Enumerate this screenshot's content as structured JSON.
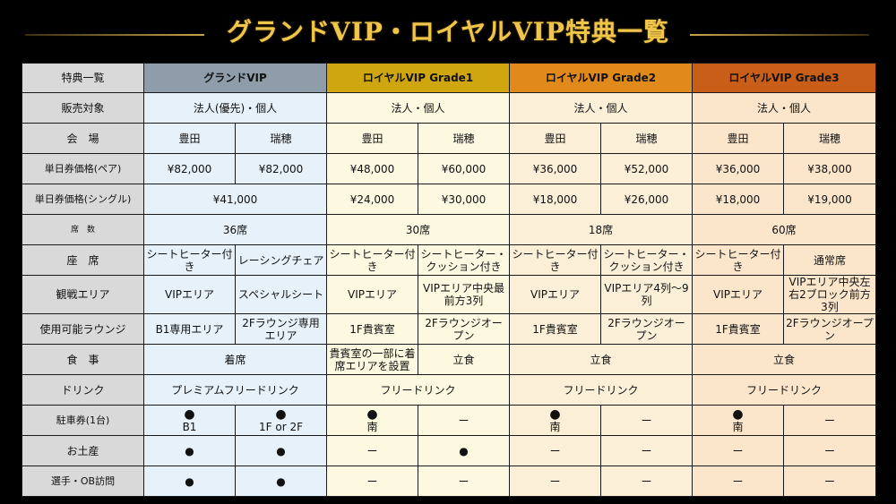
{
  "title": "グランドVIP・ロイヤルVIP特典一覧",
  "header": {
    "label": "特典一覧",
    "grand": "グランドVIP",
    "royal1": "ロイヤルVIP Grade1",
    "royal2": "ロイヤルVIP Grade2",
    "royal3": "ロイヤルVIP Grade3"
  },
  "rows": {
    "target": {
      "label": "販売対象",
      "grand": "法人(優先)・個人",
      "r1": "法人・個人",
      "r2": "法人・個人",
      "r3": "法人・個人"
    },
    "venue": {
      "label": "会　場",
      "g_a": "豊田",
      "g_b": "瑞穂",
      "r1_a": "豊田",
      "r1_b": "瑞穂",
      "r2_a": "豊田",
      "r2_b": "瑞穂",
      "r3_a": "豊田",
      "r3_b": "瑞穂"
    },
    "pair": {
      "label": "単日券価格(ペア)",
      "g_a": "¥82,000",
      "g_b": "¥82,000",
      "r1_a": "¥48,000",
      "r1_b": "¥60,000",
      "r2_a": "¥36,000",
      "r2_b": "¥52,000",
      "r3_a": "¥36,000",
      "r3_b": "¥38,000"
    },
    "single": {
      "label": "単日券価格(シングル)",
      "grand": "¥41,000",
      "r1_a": "¥24,000",
      "r1_b": "¥30,000",
      "r2_a": "¥18,000",
      "r2_b": "¥26,000",
      "r3_a": "¥18,000",
      "r3_b": "¥19,000"
    },
    "seats": {
      "label": "席　数",
      "grand": "36席",
      "r1": "30席",
      "r2": "18席",
      "r3": "60席"
    },
    "seat": {
      "label": "座　席",
      "g_a": "シートヒーター付き",
      "g_b": "レーシングチェア",
      "r1_a": "シートヒーター付き",
      "r1_b": "シートヒーター・クッション付き",
      "r2_a": "シートヒーター付き",
      "r2_b": "シートヒーター・クッション付き",
      "r3_a": "シートヒーター付き",
      "r3_b": "通常席"
    },
    "area": {
      "label": "観戦エリア",
      "g_a": "VIPエリア",
      "g_b": "スペシャルシート",
      "r1_a": "VIPエリア",
      "r1_b": "VIPエリア中央最前方3列",
      "r2_a": "VIPエリア",
      "r2_b": "VIPエリア4列～9列",
      "r3_a": "VIPエリア",
      "r3_b": "VIPエリア中央左右2ブロック前方3列"
    },
    "lounge": {
      "label": "使用可能ラウンジ",
      "g_a": "B1専用エリア",
      "g_b": "2Fラウンジ専用エリア",
      "r1_a": "1F貴賓室",
      "r1_b": "2Fラウンジオープン",
      "r2_a": "1F貴賓室",
      "r2_b": "2Fラウンジオープン",
      "r3_a": "1F貴賓室",
      "r3_b": "2Fラウンジオープン"
    },
    "meal": {
      "label": "食　事",
      "grand": "着席",
      "r1_note": "貴賓室の一部に着席エリアを設置",
      "r1_b": "立食",
      "r2": "立食",
      "r3": "立食"
    },
    "drink": {
      "label": "ドリンク",
      "grand": "プレミアムフリードリンク",
      "r1": "フリードリンク",
      "r2": "フリードリンク",
      "r3": "フリードリンク"
    },
    "parking": {
      "label": "駐車券(1台)",
      "dot": "●",
      "dash": "ー",
      "g_a": "B1",
      "g_b": "1F or 2F",
      "r1_a": "南",
      "r2_a": "南",
      "r3_a": "南"
    },
    "souvenir": {
      "label": "お土産",
      "dot": "●",
      "dash": "ー"
    },
    "visit": {
      "label": "選手・OB訪問",
      "dot": "●",
      "dash": "ー"
    }
  }
}
